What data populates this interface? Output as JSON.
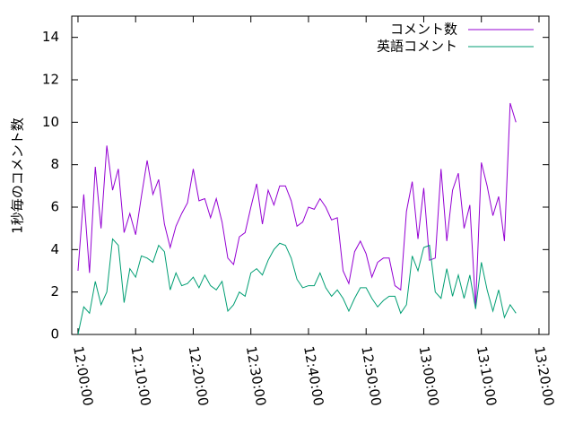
{
  "chart_data": {
    "type": "line",
    "ylabel": "1秒毎のコメント数",
    "x": [
      "12:00:00",
      "12:01:00",
      "12:02:00",
      "12:03:00",
      "12:04:00",
      "12:05:00",
      "12:06:00",
      "12:07:00",
      "12:08:00",
      "12:09:00",
      "12:10:00",
      "12:11:00",
      "12:12:00",
      "12:13:00",
      "12:14:00",
      "12:15:00",
      "12:16:00",
      "12:17:00",
      "12:18:00",
      "12:19:00",
      "12:20:00",
      "12:21:00",
      "12:22:00",
      "12:23:00",
      "12:24:00",
      "12:25:00",
      "12:26:00",
      "12:27:00",
      "12:28:00",
      "12:29:00",
      "12:30:00",
      "12:31:00",
      "12:32:00",
      "12:33:00",
      "12:34:00",
      "12:35:00",
      "12:36:00",
      "12:37:00",
      "12:38:00",
      "12:39:00",
      "12:40:00",
      "12:41:00",
      "12:42:00",
      "12:43:00",
      "12:44:00",
      "12:45:00",
      "12:46:00",
      "12:47:00",
      "12:48:00",
      "12:49:00",
      "12:50:00",
      "12:51:00",
      "12:52:00",
      "12:53:00",
      "12:54:00",
      "12:55:00",
      "12:56:00",
      "12:57:00",
      "12:58:00",
      "12:59:00",
      "13:00:00",
      "13:01:00",
      "13:02:00",
      "13:03:00",
      "13:04:00",
      "13:05:00",
      "13:06:00",
      "13:07:00",
      "13:08:00",
      "13:09:00",
      "13:10:00",
      "13:11:00",
      "13:12:00",
      "13:13:00",
      "13:14:00",
      "13:15:00",
      "13:16:00"
    ],
    "series": [
      {
        "name": "コメント数",
        "color": "#9400d3",
        "values": [
          3.0,
          6.6,
          2.9,
          7.9,
          5.0,
          8.9,
          6.8,
          7.8,
          4.8,
          5.7,
          4.7,
          6.5,
          8.2,
          6.6,
          7.3,
          5.2,
          4.1,
          5.1,
          5.7,
          6.2,
          7.8,
          6.3,
          6.4,
          5.5,
          6.4,
          5.3,
          3.6,
          3.3,
          4.6,
          4.8,
          6.0,
          7.1,
          5.2,
          6.8,
          6.1,
          7.0,
          7.0,
          6.3,
          5.1,
          5.3,
          6.0,
          5.9,
          6.4,
          6.0,
          5.4,
          5.5,
          3.0,
          2.4,
          3.9,
          4.4,
          3.8,
          2.7,
          3.4,
          3.6,
          3.6,
          2.3,
          2.1,
          5.8,
          7.2,
          4.5,
          6.9,
          3.5,
          3.6,
          7.8,
          4.4,
          6.8,
          7.6,
          5.0,
          6.1,
          1.3,
          8.1,
          7.0,
          5.6,
          6.5,
          4.4,
          10.9,
          10.0
        ]
      },
      {
        "name": "英語コメント",
        "color": "#009e73",
        "values": [
          0.0,
          1.3,
          1.0,
          2.5,
          1.4,
          2.0,
          4.5,
          4.2,
          1.5,
          3.1,
          2.7,
          3.7,
          3.6,
          3.4,
          4.2,
          3.9,
          2.1,
          2.9,
          2.3,
          2.4,
          2.7,
          2.2,
          2.8,
          2.3,
          2.1,
          2.5,
          1.1,
          1.4,
          2.0,
          1.8,
          2.9,
          3.1,
          2.8,
          3.5,
          4.0,
          4.3,
          4.2,
          3.6,
          2.6,
          2.2,
          2.3,
          2.3,
          2.9,
          2.2,
          1.8,
          2.1,
          1.7,
          1.1,
          1.7,
          2.2,
          2.2,
          1.7,
          1.3,
          1.6,
          1.8,
          1.8,
          1.0,
          1.4,
          3.7,
          3.0,
          4.1,
          4.2,
          2.0,
          1.7,
          3.1,
          1.8,
          2.8,
          1.7,
          2.8,
          1.2,
          3.4,
          2.1,
          1.1,
          2.1,
          0.8,
          1.4,
          1.0
        ]
      }
    ],
    "xlim": [
      "11:58:55",
      "13:21:43"
    ],
    "xticks": [
      "12:00:00",
      "12:10:00",
      "12:20:00",
      "12:30:00",
      "12:40:00",
      "12:50:00",
      "13:00:00",
      "13:10:00",
      "13:20:00"
    ],
    "ylim": [
      0,
      15
    ],
    "yticks": [
      0,
      2,
      4,
      6,
      8,
      10,
      12,
      14
    ],
    "legend": "top-right"
  }
}
